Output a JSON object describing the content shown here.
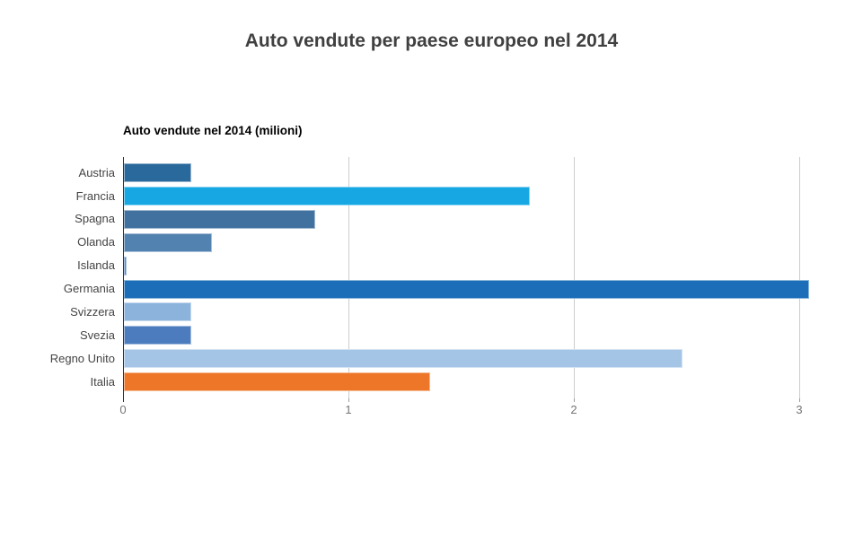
{
  "title": "Auto vendute per paese europeo nel 2014",
  "chart_data": {
    "type": "bar",
    "orientation": "horizontal",
    "title": "Auto vendute nel 2014 (milioni)",
    "categories": [
      "Austria",
      "Francia",
      "Spagna",
      "Olanda",
      "Islanda",
      "Germania",
      "Svizzera",
      "Svezia",
      "Regno Unito",
      "Italia"
    ],
    "values": [
      0.3,
      1.8,
      0.85,
      0.39,
      0.01,
      3.04,
      0.3,
      0.3,
      2.48,
      1.36
    ],
    "bar_colors": [
      "#2A699C",
      "#17A8E3",
      "#41719F",
      "#5282B0",
      "#5688C4",
      "#1B6EB7",
      "#8BB3DC",
      "#4C7BBE",
      "#A5C5E6",
      "#ED7628"
    ],
    "x_ticks": [
      "0",
      "1",
      "2",
      "3"
    ],
    "x_tick_values": [
      0,
      1,
      2,
      3
    ],
    "xlim": [
      0,
      3.27
    ],
    "xlabel": "",
    "ylabel": "",
    "grid": true,
    "legend": "none"
  },
  "colors": {
    "background": "#ffffff",
    "title_text": "#404040",
    "subtitle_text": "#000000",
    "axis_line": "#333333",
    "gridline": "#cccccc",
    "tick_label": "#757575",
    "category_label": "#444444"
  }
}
